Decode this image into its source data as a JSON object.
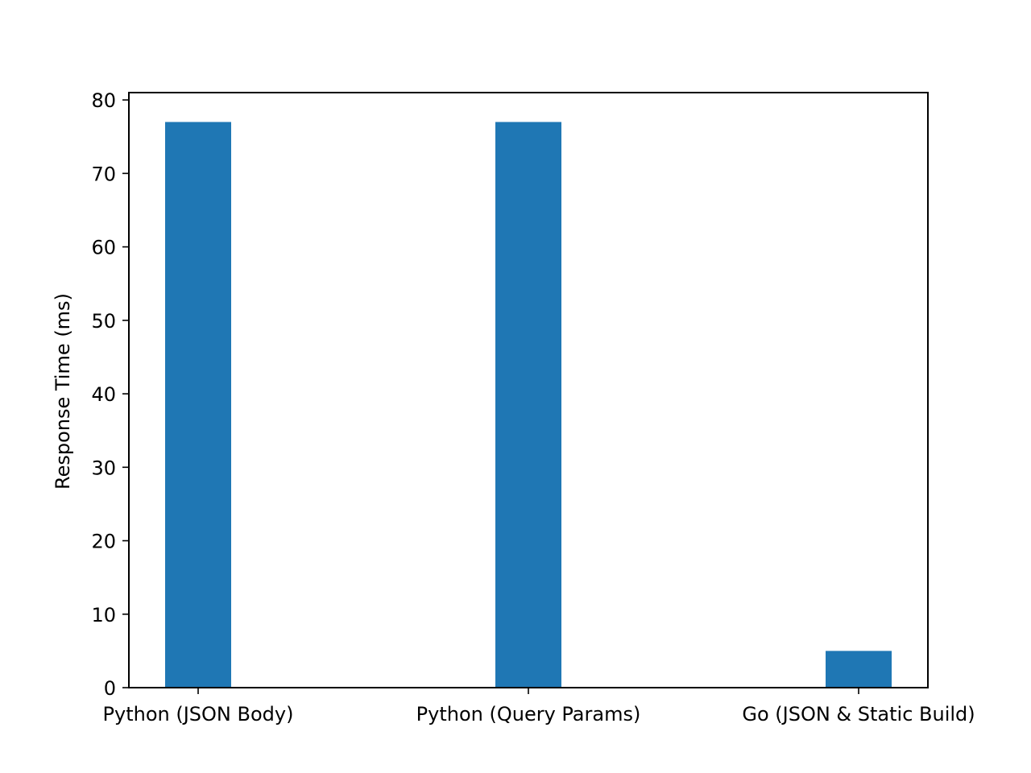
{
  "chart_data": {
    "type": "bar",
    "categories": [
      "Python (JSON Body)",
      "Python (Query Params)",
      "Go (JSON & Static Build)"
    ],
    "values": [
      77,
      77,
      5
    ],
    "title": "",
    "xlabel": "",
    "ylabel": "Response Time (ms)",
    "ylim": [
      0,
      81
    ],
    "yticks": [
      0,
      10,
      20,
      30,
      40,
      50,
      60,
      70,
      80
    ],
    "grid": false,
    "bar_color": "#1f77b4"
  }
}
